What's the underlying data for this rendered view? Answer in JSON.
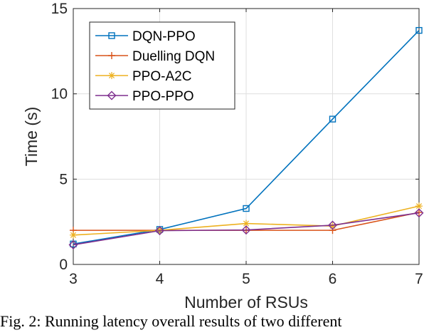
{
  "caption": "Fig. 2: Running latency overall results of two different",
  "chart_data": {
    "type": "line",
    "xlabel": "Number of RSUs",
    "ylabel": "Time (s)",
    "xlim": [
      3,
      7
    ],
    "ylim": [
      0,
      15
    ],
    "x": [
      3,
      4,
      5,
      6,
      7
    ],
    "xticks": [
      "3",
      "4",
      "5",
      "6",
      "7"
    ],
    "yticks": [
      "0",
      "5",
      "10",
      "15"
    ],
    "grid": true,
    "legend_position": "top-left",
    "series": [
      {
        "name": "DQN-PPO",
        "color": "#0072BD",
        "marker": "square",
        "values": [
          1.2,
          2.05,
          3.28,
          8.52,
          13.72
        ]
      },
      {
        "name": "Duelling DQN",
        "color": "#D95319",
        "marker": "plus",
        "values": [
          2.0,
          2.0,
          2.0,
          2.0,
          3.05
        ]
      },
      {
        "name": "PPO-A2C",
        "color": "#EDB120",
        "marker": "asterisk",
        "values": [
          1.72,
          2.0,
          2.4,
          2.25,
          3.42
        ]
      },
      {
        "name": "PPO-PPO",
        "color": "#7E2F8E",
        "marker": "diamond",
        "values": [
          1.15,
          1.98,
          2.02,
          2.3,
          3.02
        ]
      }
    ]
  }
}
